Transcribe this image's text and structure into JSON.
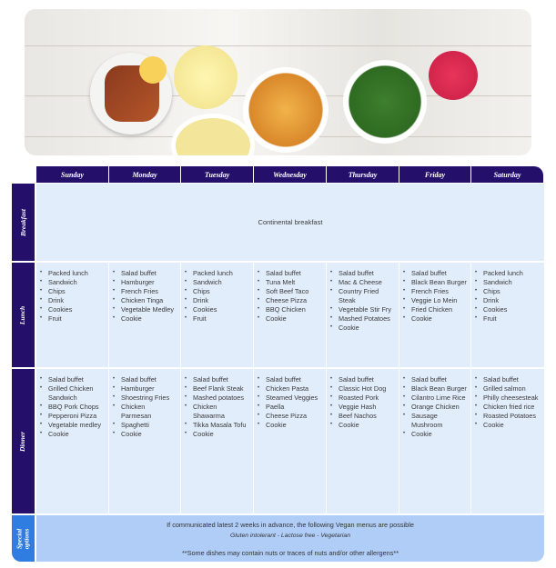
{
  "days": [
    "Sunday",
    "Monday",
    "Tuesday",
    "Wednesday",
    "Thursday",
    "Friday",
    "Saturday"
  ],
  "rows": {
    "breakfast": "Breakfast",
    "lunch": "Lunch",
    "dinner": "Dinner",
    "special": "Special options"
  },
  "breakfast": "Continental breakfast",
  "lunch": [
    [
      "Packed lunch",
      "Sandwich",
      "Chips",
      "Drink",
      "Cookies",
      "Fruit"
    ],
    [
      "Salad buffet",
      "Hamburger",
      "French Fries",
      "Chicken Tinga",
      "Vegetable Medley",
      "Cookie"
    ],
    [
      "Packed lunch",
      "Sandwich",
      "Chips",
      "Drink",
      "Cookies",
      "Fruit"
    ],
    [
      "Salad buffet",
      "Tuna Melt",
      "Soft Beef Taco",
      "Cheese Pizza",
      "BBQ Chicken",
      "Cookie"
    ],
    [
      "Salad buffet",
      "Mac & Cheese",
      "Country Fried Steak",
      "Vegetable Stir Fry",
      "Mashed Potatoes",
      "Cookie"
    ],
    [
      "Salad buffet",
      "Black Bean Burger",
      "French Fries",
      "Veggie Lo Mein",
      "Fried Chicken",
      "Cookie"
    ],
    [
      "Packed lunch",
      "Sandwich",
      "Chips",
      "Drink",
      "Cookies",
      "Fruit"
    ]
  ],
  "dinner": [
    [
      "Salad buffet",
      "Grilled Chicken Sandwich",
      "BBQ Pork Chops",
      "Pepperoni Pizza",
      "Vegetable medley",
      "Cookie"
    ],
    [
      "Salad buffet",
      "Hamburger",
      "Shoestring Fries",
      "Chicken Parmesan",
      "Spaghetti",
      "Cookie"
    ],
    [
      "Salad buffet",
      "Beef Flank Steak",
      "Mashed potatoes",
      "Chicken Shawarma",
      "Tikka Masala Tofu",
      "Cookie"
    ],
    [
      "Salad buffet",
      "Chicken Pasta",
      "Steamed Veggies",
      "Paella",
      "Cheese Pizza",
      "Cookie"
    ],
    [
      "Salad buffet",
      "Classic Hot Dog",
      "Roasted Pork",
      "Veggie Hash",
      "Beef Nachos",
      "Cookie"
    ],
    [
      "Salad buffet",
      "Black Bean Burger",
      "Cilantro Lime Rice",
      "Orange Chicken",
      "Sausage Mushroom",
      "Cookie"
    ],
    [
      "Salad buffet",
      "Grilled salmon",
      "Philly cheesesteak",
      "Chicken fried rice",
      "Roasted Potatoes",
      "Cookie"
    ]
  ],
  "special": {
    "line1": "If communicated latest 2 weeks in advance, the following Vegan menus are possible",
    "line2": "Gluten intolerant - Lactose free - Vegetarian",
    "line3": "**Some dishes may contain nuts or traces of nuts and/or other allergens**"
  },
  "colors": {
    "header": "#24106b",
    "cell": "#e2edfc",
    "special": "#b0cdf7",
    "special_label": "#2f7de1"
  }
}
